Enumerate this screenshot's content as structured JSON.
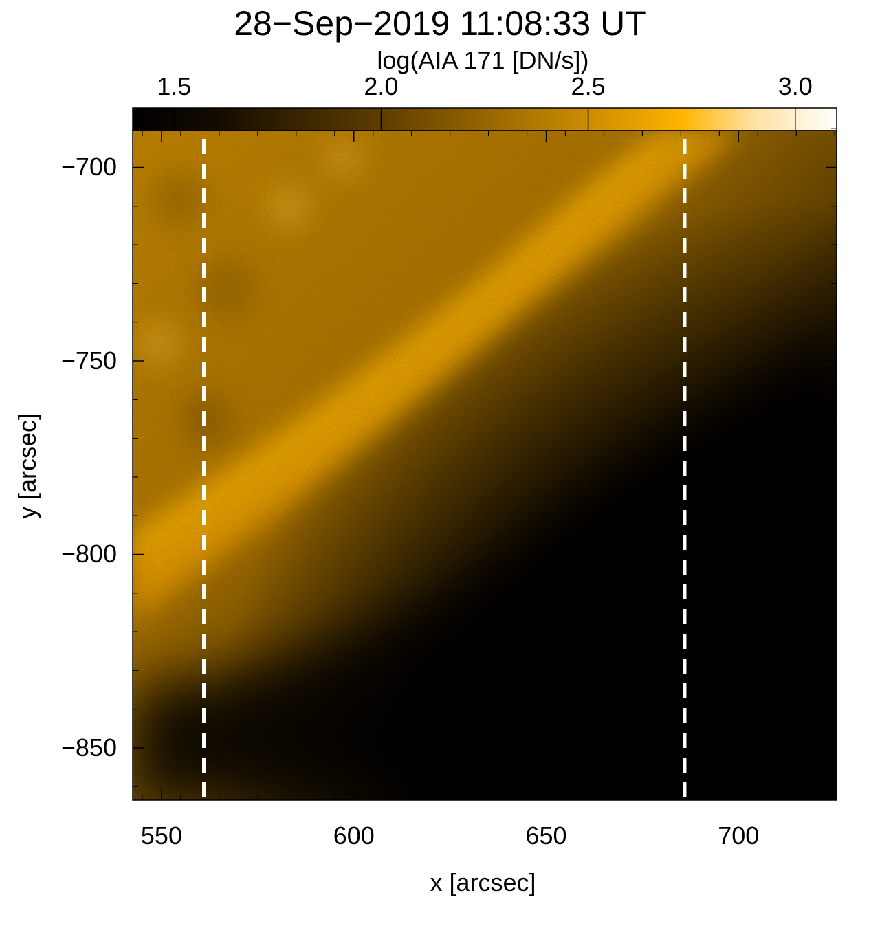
{
  "title": "28−Sep−2019 11:08:33 UT",
  "colorbar": {
    "label": "log(AIA 171 [DN/s])",
    "ticks": [
      "1.5",
      "2.0",
      "2.5",
      "3.0"
    ],
    "tick_values": [
      1.5,
      2.0,
      2.5,
      3.0
    ],
    "range": [
      1.4,
      3.1
    ],
    "colormap": "sdoaia171",
    "colors": [
      "#000000",
      "#2a1a00",
      "#805500",
      "#c58700",
      "#ffb000",
      "#fff1d6",
      "#ffffff"
    ]
  },
  "axes": {
    "xlabel": "x [arcsec]",
    "ylabel": "y [arcsec]",
    "xticks": [
      "550",
      "600",
      "650",
      "700"
    ],
    "xtick_values": [
      550,
      600,
      650,
      700
    ],
    "yticks": [
      "−700",
      "−750",
      "−800",
      "−850"
    ],
    "ytick_values": [
      -700,
      -750,
      -800,
      -850
    ],
    "xlim": [
      542.5,
      725.5
    ],
    "ylim": [
      -863.5,
      -690.5
    ]
  },
  "slit_markers": {
    "style": "white dashed vertical lines",
    "x_values": [
      561,
      686
    ]
  }
}
